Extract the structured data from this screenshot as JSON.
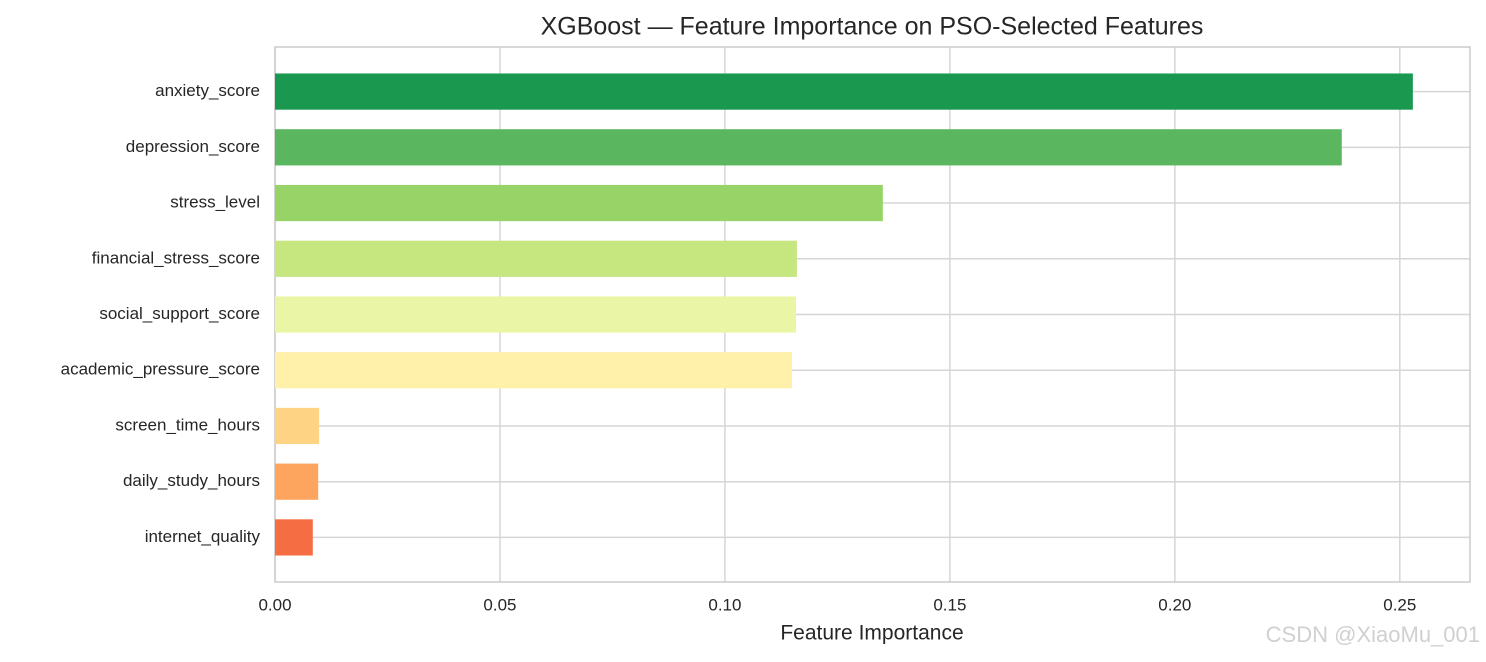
{
  "chart_data": {
    "type": "barh",
    "title": "XGBoost — Feature Importance on PSO-Selected Features",
    "x_label": "Feature Importance",
    "categories": [
      "anxiety_score",
      "depression_score",
      "stress_level",
      "financial_stress_score",
      "social_support_score",
      "academic_pressure_score",
      "screen_time_hours",
      "daily_study_hours",
      "internet_quality"
    ],
    "values": [
      0.2529,
      0.2371,
      0.1351,
      0.116,
      0.1158,
      0.1149,
      0.0098,
      0.0096,
      0.0084
    ],
    "colors": [
      "#1a9850",
      "#5bb75f",
      "#98d368",
      "#c6e680",
      "#eaf6a6",
      "#fff1aa",
      "#fed484",
      "#fda55e",
      "#f46d43"
    ],
    "xlim": [
      0,
      0.2656
    ],
    "xticks": [
      {
        "value": 0,
        "label": "0.00"
      },
      {
        "value": 0.05,
        "label": "0.05"
      },
      {
        "value": 0.1,
        "label": "0.10"
      },
      {
        "value": 0.15,
        "label": "0.15"
      },
      {
        "value": 0.2,
        "label": "0.20"
      },
      {
        "value": 0.25,
        "label": "0.25"
      }
    ],
    "grid": true,
    "watermark": "CSDN @XiaoMu_001"
  }
}
